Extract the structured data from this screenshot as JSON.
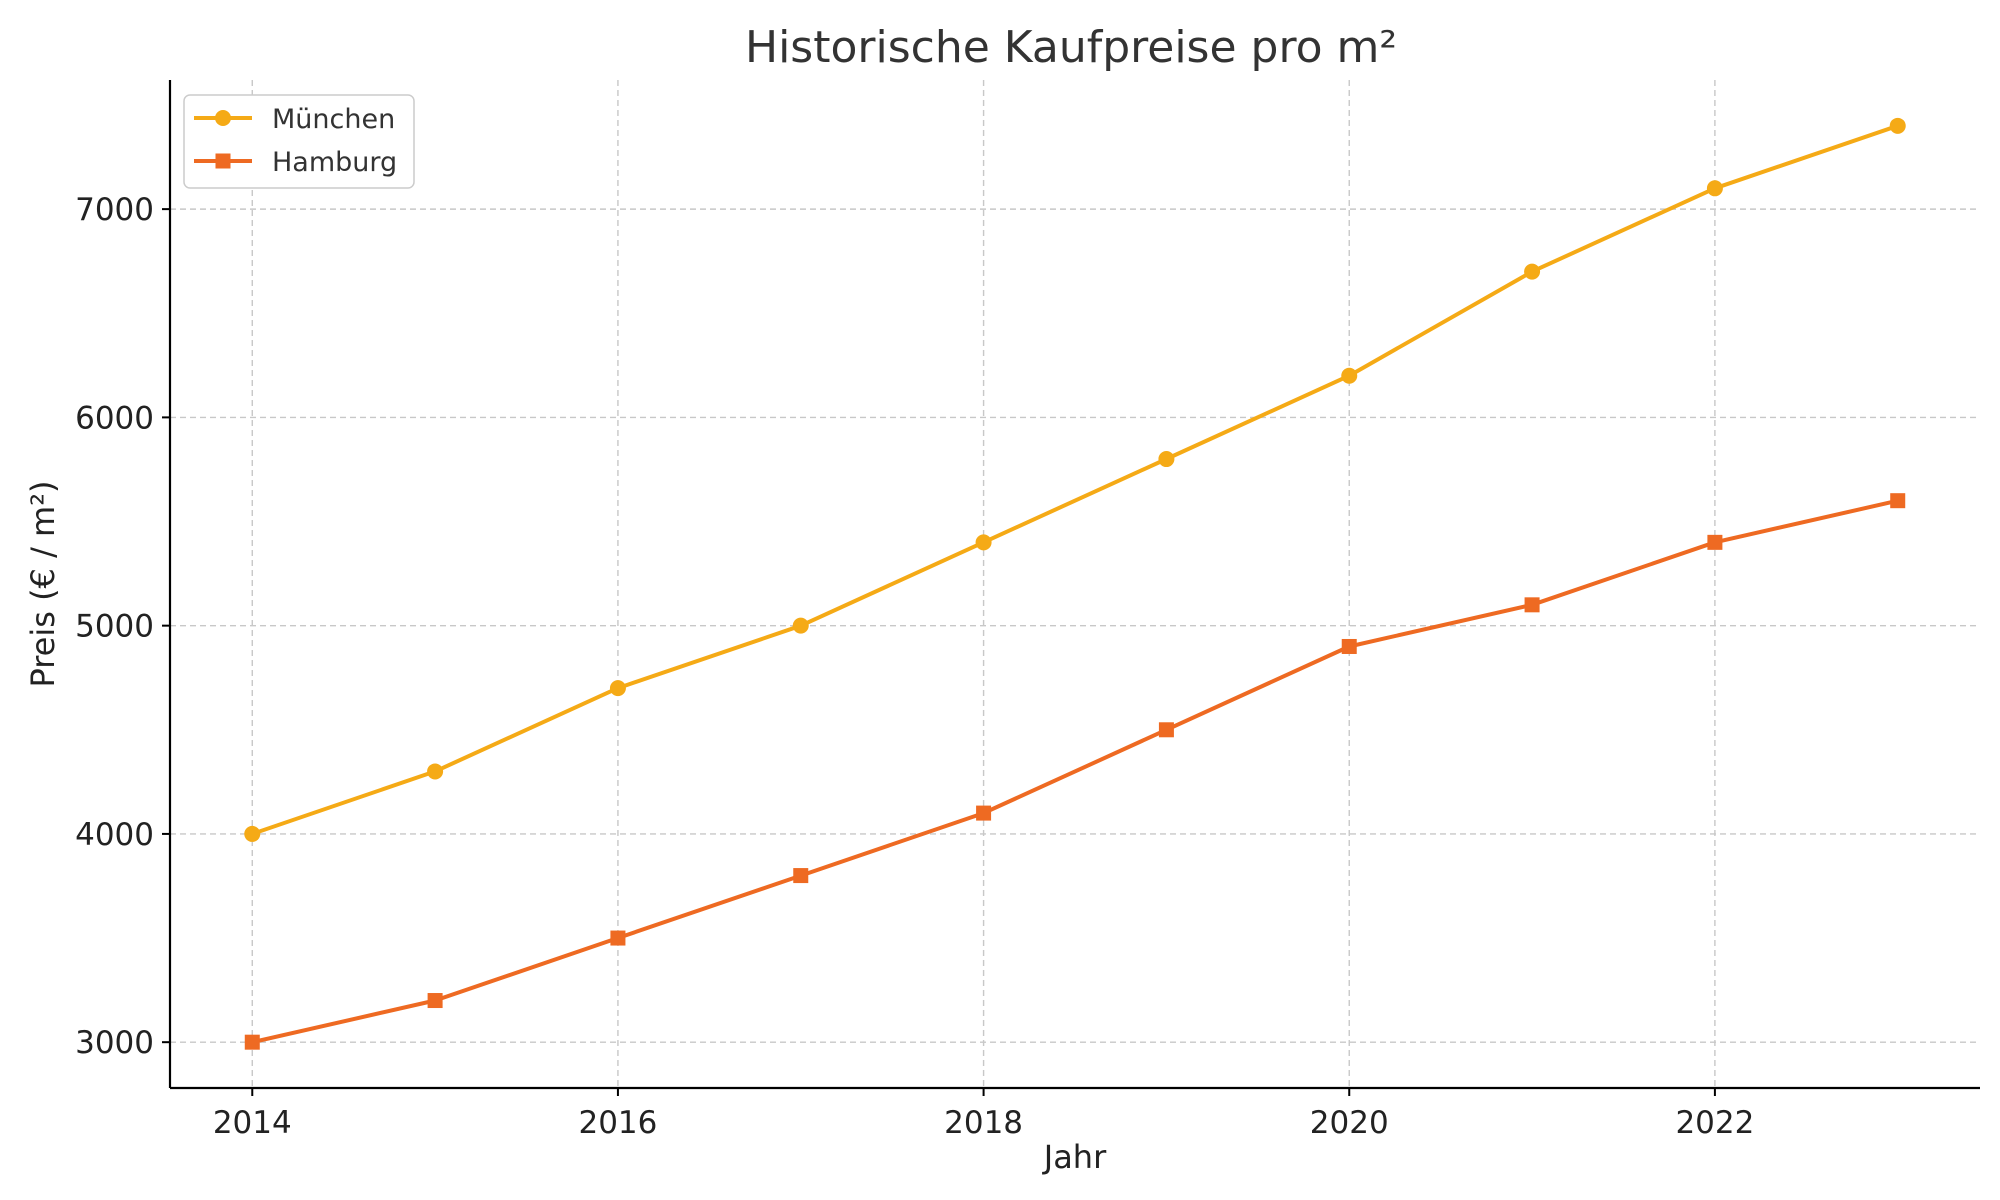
{
  "chart_data": {
    "type": "line",
    "title": "Historische Kaufpreise pro m²",
    "xlabel": "Jahr",
    "ylabel": "Preis (€ / m²)",
    "x": [
      2014,
      2015,
      2016,
      2017,
      2018,
      2019,
      2020,
      2021,
      2022,
      2023
    ],
    "xticks": [
      2014,
      2016,
      2018,
      2020,
      2022
    ],
    "yticks": [
      3000,
      4000,
      5000,
      6000,
      7000
    ],
    "xlim": [
      2013.55,
      2023.45
    ],
    "ylim": [
      2780,
      7620
    ],
    "grid": true,
    "legend_position": "top-left",
    "series": [
      {
        "name": "München",
        "marker": "circle",
        "color": "#F5AA16",
        "values": [
          4000,
          4300,
          4700,
          5000,
          5400,
          5800,
          6200,
          6700,
          7100,
          7400
        ]
      },
      {
        "name": "Hamburg",
        "marker": "square",
        "color": "#EE6A22",
        "values": [
          3000,
          3200,
          3500,
          3800,
          4100,
          4500,
          4900,
          5100,
          5400,
          5600
        ]
      }
    ]
  }
}
